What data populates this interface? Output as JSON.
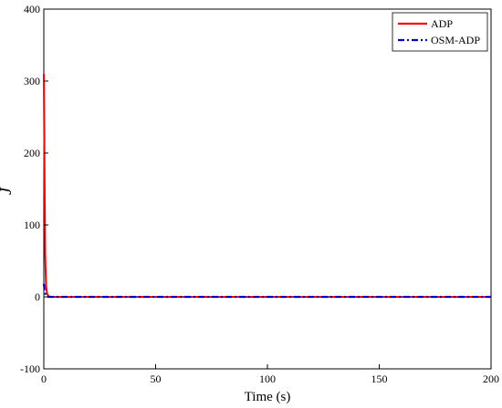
{
  "chart_data": {
    "type": "line",
    "xlabel": "Time (s)",
    "ylabel": "J",
    "xlim": [
      0,
      200
    ],
    "ylim": [
      -100,
      400
    ],
    "xticks": [
      0,
      50,
      100,
      150,
      200
    ],
    "yticks": [
      -100,
      0,
      100,
      200,
      300,
      400
    ],
    "grid": false,
    "legend_position": "top-right",
    "series": [
      {
        "name": "ADP",
        "color": "#ff0000",
        "style": "solid",
        "x": [
          0,
          0.3,
          0.6,
          1.0,
          1.5,
          2.0,
          3.0,
          5.0,
          10,
          50,
          100,
          150,
          200
        ],
        "y": [
          310,
          180,
          60,
          15,
          4,
          1,
          0.2,
          0,
          0,
          0,
          0,
          0,
          0
        ]
      },
      {
        "name": "OSM-ADP",
        "color": "#0000cc",
        "style": "dashdot",
        "x": [
          0,
          0.3,
          0.6,
          1.0,
          1.5,
          2.0,
          3.0,
          5.0,
          10,
          50,
          100,
          150,
          200
        ],
        "y": [
          18,
          10,
          5,
          2,
          0.5,
          0.1,
          0,
          0,
          0,
          0,
          0,
          0,
          0
        ]
      }
    ]
  }
}
